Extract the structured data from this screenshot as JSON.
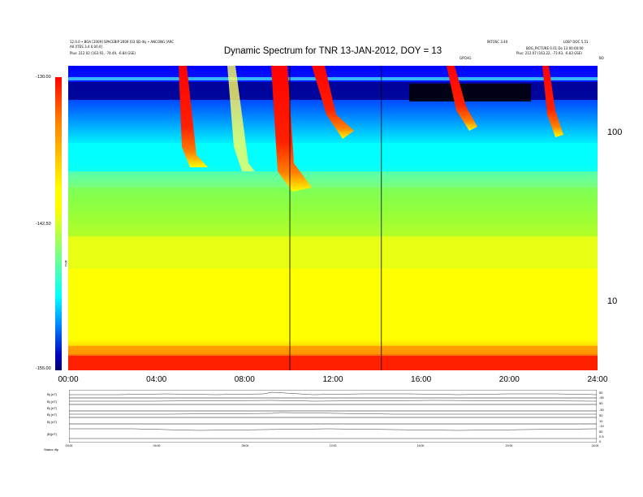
{
  "header": {
    "left_line1": "12.0.0 • BOA [2009] SPACEBIP 2009 [03 SD dly • ANCONG [ARC",
    "left_line2": "A0 [ITES 3.4 0.00.0]",
    "left_line3": "Plus:    212.02 (163.91, -74.49, -6.84 GSE)",
    "right_line1": "INTOSC 3.40",
    "right_line2": "LOB? DOC 5.51",
    "right_line3": "BOG_PICTURE 0.01 Do 13 00:00:00",
    "right_line4": "Plus:    212.07 (163.22, -73.93, -6.83 GSE)",
    "marker_left": "GPCHG",
    "marker_right": "BO"
  },
  "colorbar": {
    "top_label": "-130.00",
    "mid_label": "-142.50",
    "bottom_label": "-155.00",
    "units_label": "TNR"
  },
  "lower_panel": {
    "left_labels": [
      "Bj (nT)",
      "Bj (nT)",
      "Bj (nT)",
      "Bj (nT)",
      "Bj (nT)",
      "|B|(nT)"
    ],
    "right_labels": [
      "50",
      "-50",
      "50",
      "-50",
      "50",
      "10",
      "-10",
      "50",
      "0.5",
      "0"
    ],
    "bottom_left": "Status  dfp",
    "x_labels": [
      "00:00",
      "04:00",
      "08:00",
      "12:00",
      "16:00",
      "20:00",
      "24:00"
    ]
  },
  "chart_data": {
    "type": "heatmap",
    "title": "Dynamic Spectrum for TNR 13-JAN-2012, DOY = 13",
    "x_ticks": [
      "00:00",
      "04:00",
      "08:00",
      "12:00",
      "16:00",
      "20:00",
      "24:00"
    ],
    "x_hours": [
      0,
      4,
      8,
      12,
      16,
      20,
      24
    ],
    "xlim": [
      0,
      24
    ],
    "y_scale": "log",
    "y_ticks": [
      "100",
      "10"
    ],
    "y_tick_values": [
      100,
      10
    ],
    "ylim": [
      4,
      220
    ],
    "colorbar_range": [
      -155,
      -130
    ],
    "vertical_lines_hours": [
      10.05,
      14.2
    ],
    "colors": {
      "very_low": "#000000",
      "low": "#0000ff",
      "mid": "#00ffff",
      "high": "#ffff00",
      "max": "#ff0000"
    }
  }
}
